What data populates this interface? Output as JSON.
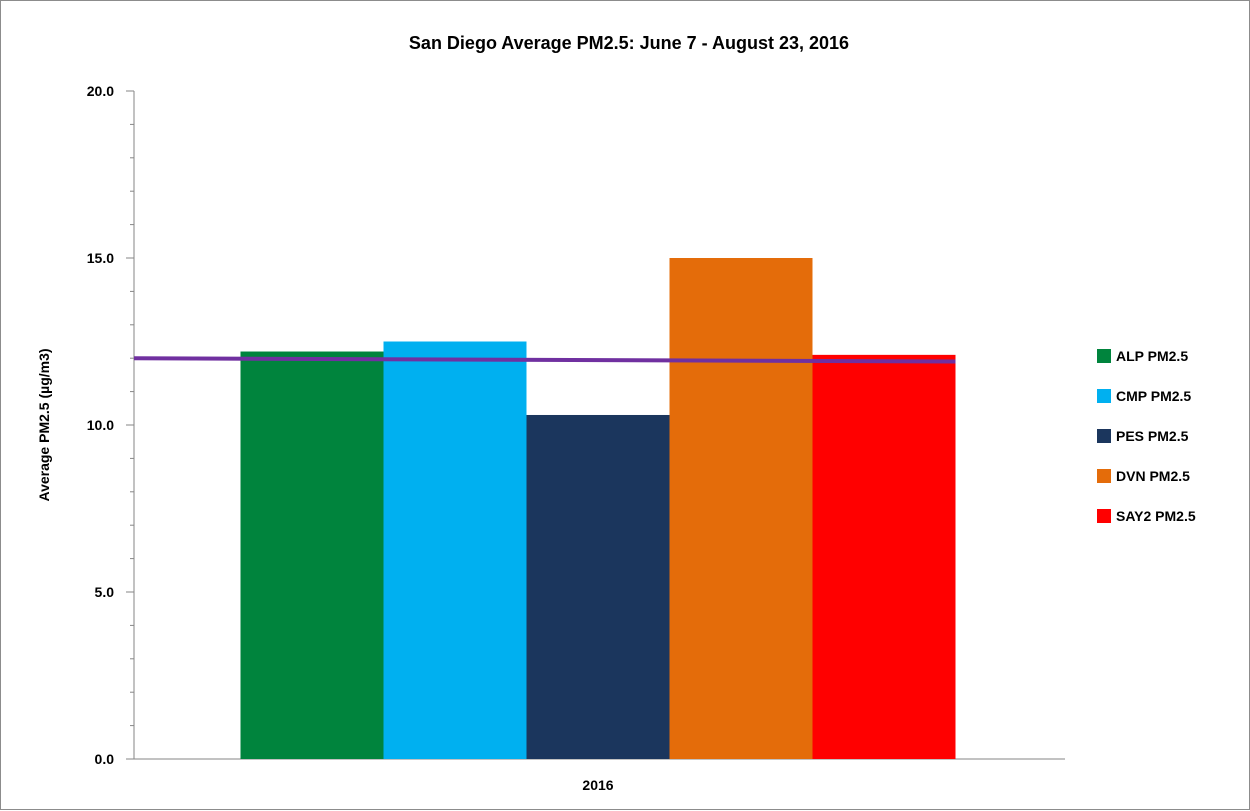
{
  "chart_data": {
    "type": "bar",
    "title": "San Diego Average PM2.5: June 7 - August 23, 2016",
    "xlabel": "",
    "ylabel": "Average PM2.5 (µg/m3)",
    "categories": [
      "2016"
    ],
    "ylim": [
      0,
      20
    ],
    "y_ticks": [
      "0.0",
      "5.0",
      "10.0",
      "15.0",
      "20.0"
    ],
    "series": [
      {
        "name": "ALP PM2.5",
        "values": [
          12.2
        ],
        "color": "#00843d"
      },
      {
        "name": "CMP PM2.5",
        "values": [
          12.5
        ],
        "color": "#00b0f0"
      },
      {
        "name": "PES PM2.5",
        "values": [
          10.3
        ],
        "color": "#1b365d"
      },
      {
        "name": "DVN PM2.5",
        "values": [
          15.0
        ],
        "color": "#e46c0a"
      },
      {
        "name": "SAY2 PM2.5",
        "values": [
          12.1
        ],
        "color": "#ff0000"
      }
    ],
    "reference_line": {
      "start": 12.0,
      "end": 11.9,
      "color": "#7030a0"
    },
    "grid": false,
    "legend_position": "right"
  }
}
